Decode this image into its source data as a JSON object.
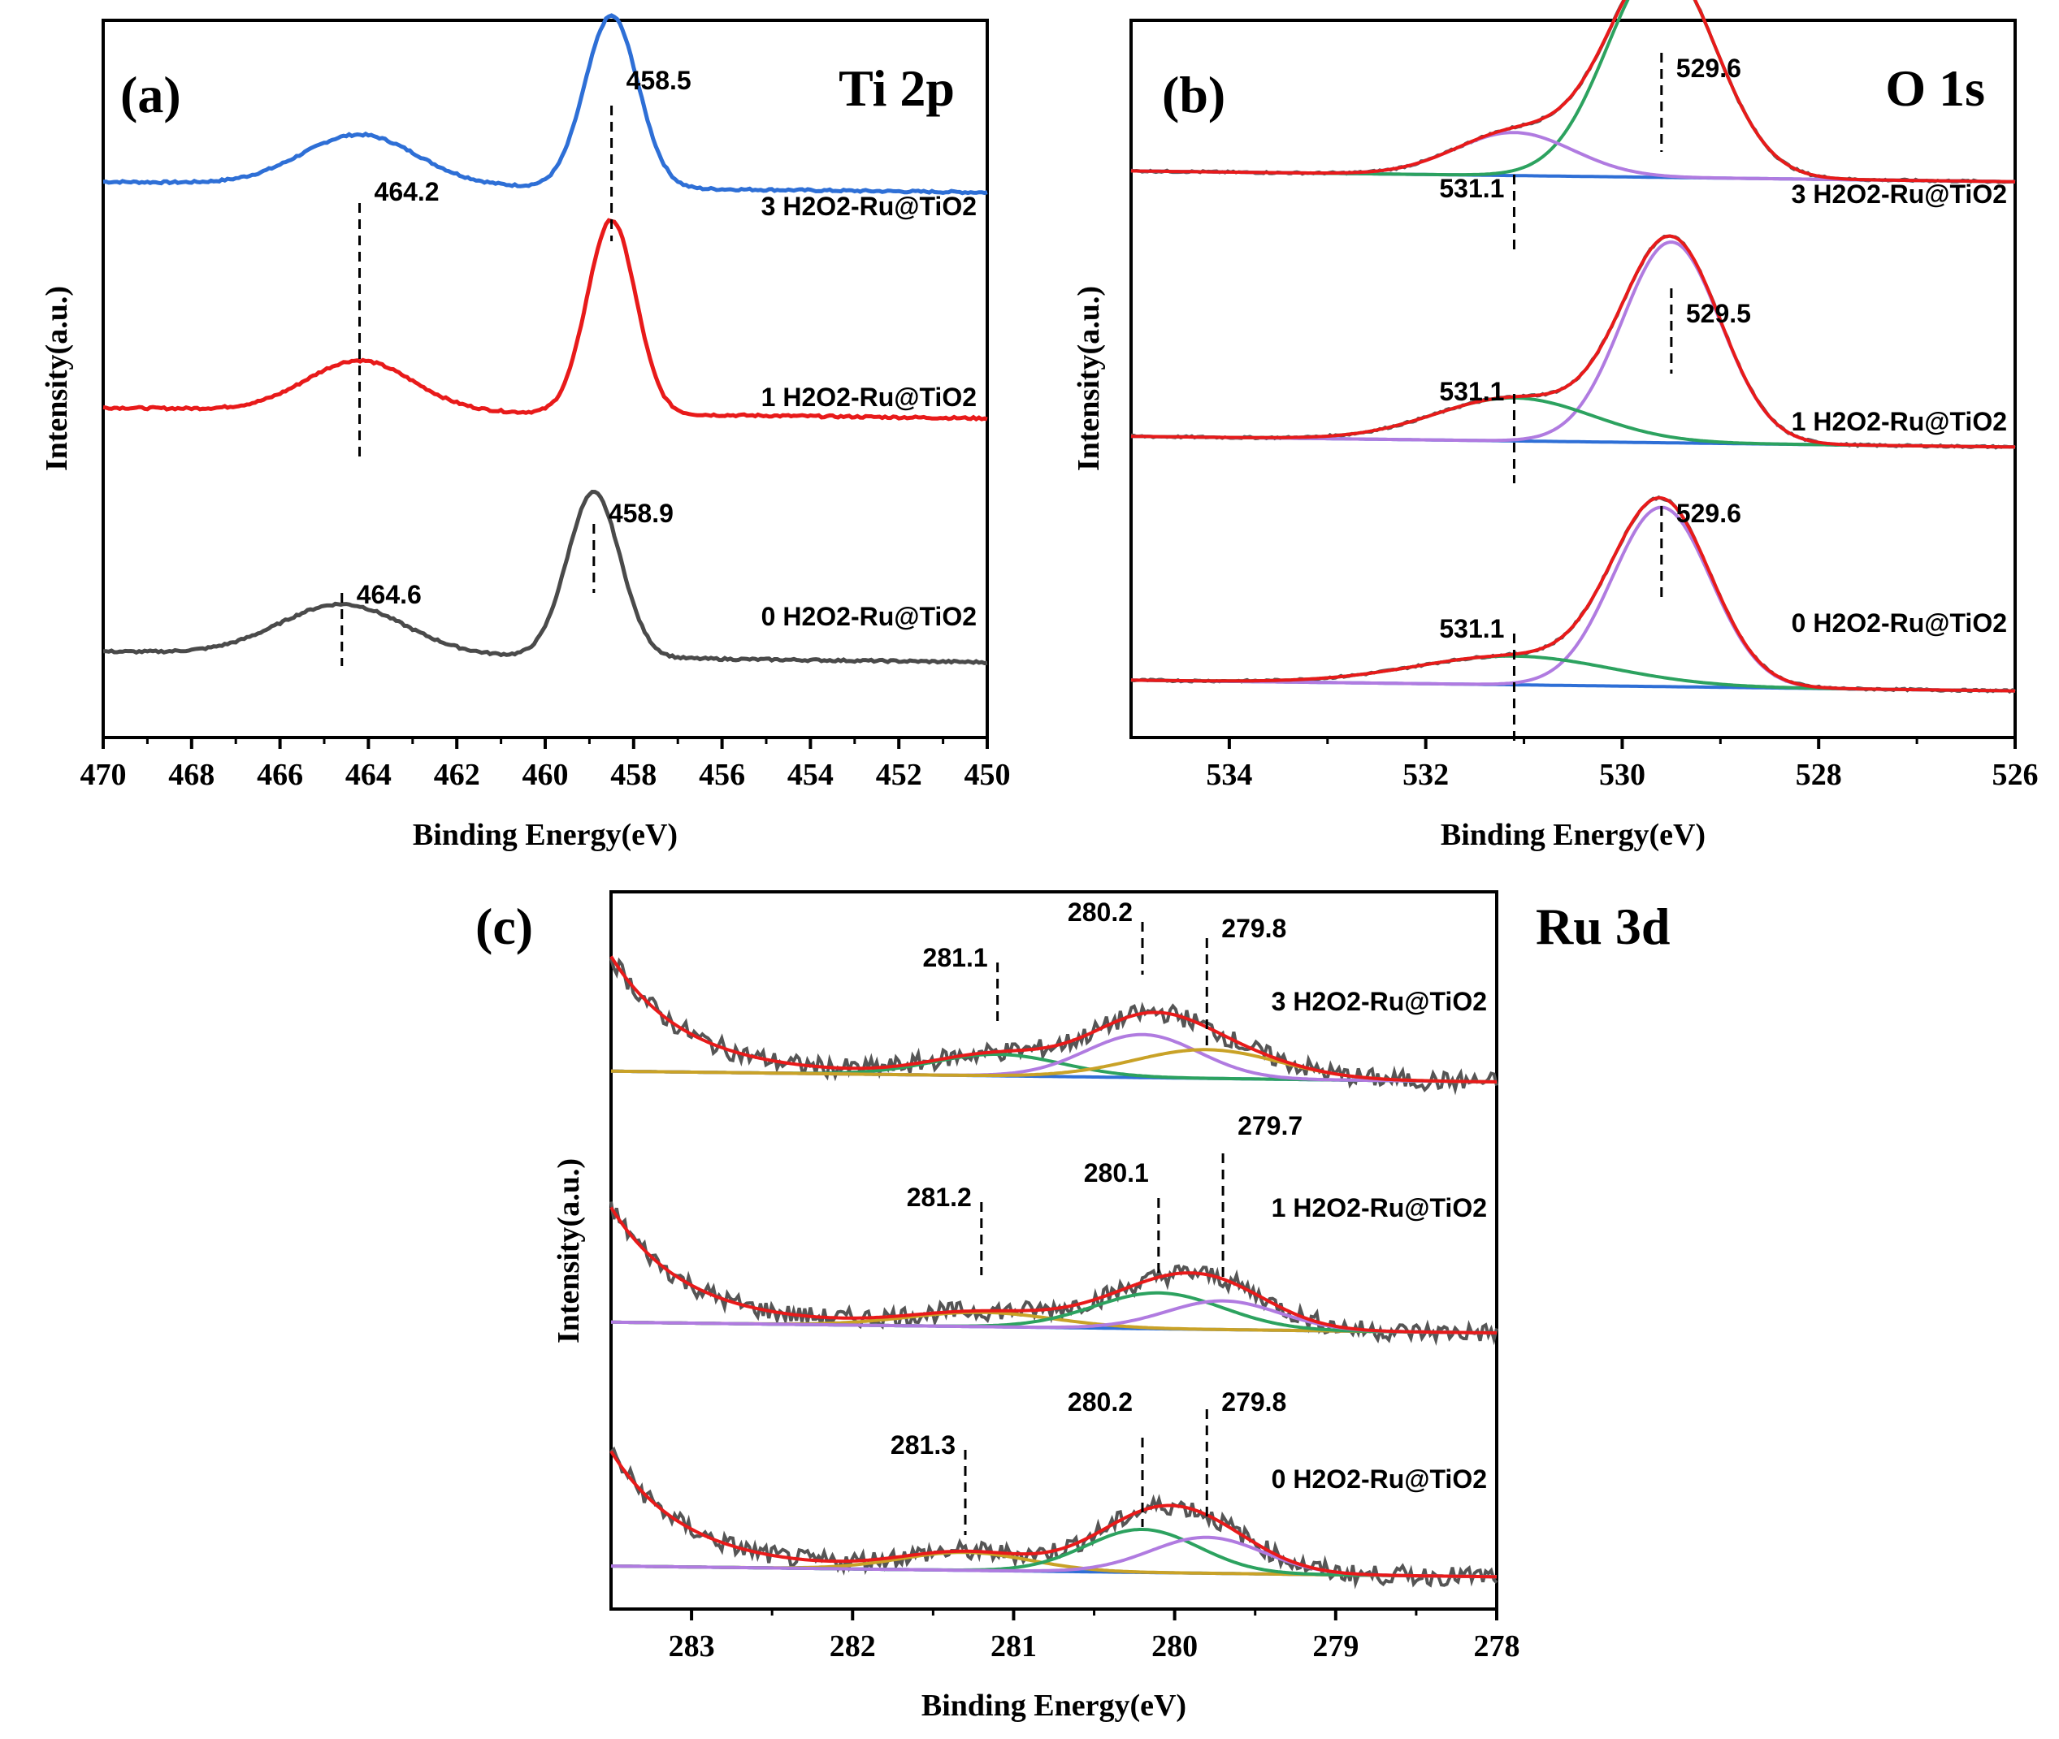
{
  "chart_data": [
    {
      "type": "line",
      "panel_label": "(a)",
      "title": "Ti 2p",
      "xlabel": "Binding Energy(eV)",
      "ylabel": "Intensity(a.u.)",
      "xlim": [
        470,
        450
      ],
      "x_ticks": [
        "470",
        "468",
        "466",
        "464",
        "462",
        "460",
        "458",
        "456",
        "454",
        "452",
        "450"
      ],
      "series": [
        {
          "name": "3 H2O2-Ru@TiO2",
          "color": "#2e6fd6",
          "baseline": 0.775,
          "peaks": [
            {
              "center": 464.2,
              "height": 0.07,
              "width": 1.3
            },
            {
              "center": 458.5,
              "height": 0.24,
              "width": 0.6
            }
          ]
        },
        {
          "name": "1 H2O2-Ru@TiO2",
          "color": "#e81a1a",
          "baseline": 0.46,
          "peaks": [
            {
              "center": 464.2,
              "height": 0.07,
              "width": 1.2
            },
            {
              "center": 458.5,
              "height": 0.27,
              "width": 0.55
            }
          ]
        },
        {
          "name": "0 H2O2-Ru@TiO2",
          "color": "#4a4a4a",
          "baseline": 0.12,
          "peaks": [
            {
              "center": 464.6,
              "height": 0.07,
              "width": 1.4
            },
            {
              "center": 458.9,
              "height": 0.23,
              "width": 0.6
            }
          ]
        }
      ],
      "annotations": [
        {
          "text": "458.5",
          "x": 458.5
        },
        {
          "text": "464.2",
          "x": 464.2
        },
        {
          "text": "458.9",
          "x": 458.9
        },
        {
          "text": "464.6",
          "x": 464.6
        }
      ]
    },
    {
      "type": "line",
      "panel_label": "(b)",
      "title": "O 1s",
      "xlabel": "Binding Energy(eV)",
      "ylabel": "Intensity(a.u.)",
      "xlim": [
        535,
        526
      ],
      "x_ticks": [
        "534",
        "532",
        "530",
        "528",
        "526"
      ],
      "series": [
        {
          "name": "3 H2O2-Ru@TiO2",
          "baseline": 0.79,
          "peaks": [
            {
              "center": 529.6,
              "height": 0.3,
              "width": 0.55,
              "color": "#2ca25f"
            },
            {
              "center": 531.1,
              "height": 0.06,
              "width": 0.6,
              "color": "#b07be0"
            }
          ]
        },
        {
          "name": "1 H2O2-Ru@TiO2",
          "baseline": 0.42,
          "peaks": [
            {
              "center": 529.5,
              "height": 0.28,
              "width": 0.5,
              "color": "#b07be0"
            },
            {
              "center": 531.1,
              "height": 0.06,
              "width": 0.8,
              "color": "#2ca25f"
            }
          ]
        },
        {
          "name": "0 H2O2-Ru@TiO2",
          "baseline": 0.08,
          "peaks": [
            {
              "center": 529.6,
              "height": 0.25,
              "width": 0.5,
              "color": "#b07be0"
            },
            {
              "center": 531.1,
              "height": 0.04,
              "width": 1.0,
              "color": "#2ca25f"
            }
          ]
        }
      ],
      "annotations": [
        {
          "text": "529.6",
          "x": 529.6
        },
        {
          "text": "531.1",
          "x": 531.1
        },
        {
          "text": "529.5",
          "x": 529.5
        },
        {
          "text": "531.1",
          "x": 531.1
        },
        {
          "text": "529.6",
          "x": 529.6
        },
        {
          "text": "531.1",
          "x": 531.1
        }
      ]
    },
    {
      "type": "line",
      "panel_label": "(c)",
      "title": "Ru 3d",
      "xlabel": "Binding Energy(eV)",
      "ylabel": "Intensity(a.u.)",
      "xlim": [
        283.5,
        278
      ],
      "x_ticks": [
        "283",
        "282",
        "281",
        "280",
        "279",
        "278"
      ],
      "series": [
        {
          "name": "3 H2O2-Ru@TiO2",
          "baseline": 0.75,
          "peaks": [
            {
              "center": 281.1,
              "height": 0.03,
              "width": 0.4,
              "color": "#2ca25f"
            },
            {
              "center": 280.2,
              "height": 0.06,
              "width": 0.35,
              "color": "#b07be0"
            },
            {
              "center": 279.8,
              "height": 0.04,
              "width": 0.45,
              "color": "#c9a227"
            }
          ]
        },
        {
          "name": "1 H2O2-Ru@TiO2",
          "baseline": 0.4,
          "peaks": [
            {
              "center": 281.2,
              "height": 0.02,
              "width": 0.45,
              "color": "#c9a227"
            },
            {
              "center": 280.1,
              "height": 0.05,
              "width": 0.4,
              "color": "#2ca25f"
            },
            {
              "center": 279.7,
              "height": 0.04,
              "width": 0.35,
              "color": "#b07be0"
            }
          ]
        },
        {
          "name": "0 H2O2-Ru@TiO2",
          "baseline": 0.06,
          "peaks": [
            {
              "center": 281.3,
              "height": 0.025,
              "width": 0.4,
              "color": "#c9a227"
            },
            {
              "center": 280.2,
              "height": 0.06,
              "width": 0.35,
              "color": "#2ca25f"
            },
            {
              "center": 279.8,
              "height": 0.05,
              "width": 0.35,
              "color": "#b07be0"
            }
          ]
        }
      ],
      "annotations": [
        {
          "text": "280.2",
          "x": 280.2
        },
        {
          "text": "279.8",
          "x": 279.8
        },
        {
          "text": "281.1",
          "x": 281.1
        },
        {
          "text": "279.7",
          "x": 279.7
        },
        {
          "text": "281.2",
          "x": 281.2
        },
        {
          "text": "280.1",
          "x": 280.1
        },
        {
          "text": "280.2",
          "x": 280.2
        },
        {
          "text": "279.8",
          "x": 279.8
        },
        {
          "text": "281.3",
          "x": 281.3
        }
      ]
    }
  ]
}
